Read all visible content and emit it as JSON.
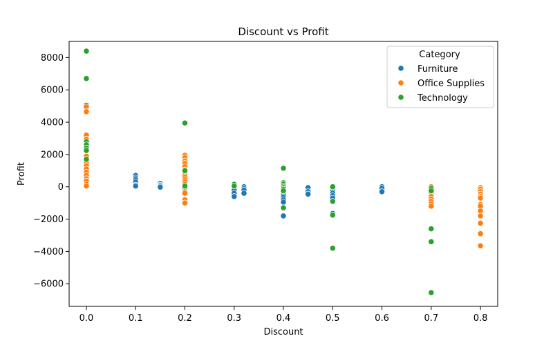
{
  "chart_data": {
    "type": "scatter",
    "title": "Discount vs Profit",
    "xlabel": "Discount",
    "ylabel": "Profit",
    "xlim": [
      -0.035,
      0.835
    ],
    "ylim": [
      -7400,
      9000
    ],
    "xticks": [
      0.0,
      0.1,
      0.2,
      0.3,
      0.4,
      0.5,
      0.6,
      0.7,
      0.8
    ],
    "xtick_labels": [
      "0.0",
      "0.1",
      "0.2",
      "0.3",
      "0.4",
      "0.5",
      "0.6",
      "0.7",
      "0.8"
    ],
    "yticks": [
      -6000,
      -4000,
      -2000,
      0,
      2000,
      4000,
      6000,
      8000
    ],
    "ytick_labels": [
      "−6000",
      "−4000",
      "−2000",
      "0",
      "2000",
      "4000",
      "6000",
      "8000"
    ],
    "grid": false,
    "legend": {
      "title": "Category",
      "placement": "top-right"
    },
    "series": [
      {
        "name": "Furniture",
        "color": "#1f77b4",
        "points": [
          [
            0.0,
            5050
          ],
          [
            0.0,
            1350
          ],
          [
            0.0,
            1050
          ],
          [
            0.0,
            800
          ],
          [
            0.0,
            600
          ],
          [
            0.0,
            400
          ],
          [
            0.0,
            200
          ],
          [
            0.0,
            100
          ],
          [
            0.1,
            700
          ],
          [
            0.1,
            550
          ],
          [
            0.1,
            450
          ],
          [
            0.1,
            300
          ],
          [
            0.1,
            100
          ],
          [
            0.1,
            50
          ],
          [
            0.15,
            200
          ],
          [
            0.15,
            100
          ],
          [
            0.15,
            50
          ],
          [
            0.15,
            -20
          ],
          [
            0.2,
            600
          ],
          [
            0.2,
            300
          ],
          [
            0.2,
            100
          ],
          [
            0.2,
            -100
          ],
          [
            0.3,
            150
          ],
          [
            0.3,
            0
          ],
          [
            0.3,
            -100
          ],
          [
            0.3,
            -200
          ],
          [
            0.3,
            -400
          ],
          [
            0.3,
            -600
          ],
          [
            0.32,
            0
          ],
          [
            0.32,
            -100
          ],
          [
            0.32,
            -200
          ],
          [
            0.32,
            -400
          ],
          [
            0.4,
            100
          ],
          [
            0.4,
            0
          ],
          [
            0.4,
            -100
          ],
          [
            0.4,
            -200
          ],
          [
            0.4,
            -350
          ],
          [
            0.4,
            -500
          ],
          [
            0.4,
            -650
          ],
          [
            0.4,
            -800
          ],
          [
            0.4,
            -950
          ],
          [
            0.4,
            -1800
          ],
          [
            0.45,
            -50
          ],
          [
            0.45,
            -300
          ],
          [
            0.45,
            -450
          ],
          [
            0.5,
            -100
          ],
          [
            0.5,
            -250
          ],
          [
            0.5,
            -400
          ],
          [
            0.5,
            -550
          ],
          [
            0.5,
            -700
          ],
          [
            0.5,
            -900
          ],
          [
            0.5,
            -1650
          ],
          [
            0.5,
            -1750
          ],
          [
            0.6,
            0
          ],
          [
            0.6,
            -100
          ],
          [
            0.6,
            -300
          ],
          [
            0.7,
            -200
          ],
          [
            0.7,
            -350
          ],
          [
            0.7,
            -500
          ]
        ]
      },
      {
        "name": "Office Supplies",
        "color": "#ff7f0e",
        "points": [
          [
            0.0,
            4950
          ],
          [
            0.0,
            4650
          ],
          [
            0.0,
            3200
          ],
          [
            0.0,
            2950
          ],
          [
            0.0,
            1900
          ],
          [
            0.0,
            1700
          ],
          [
            0.0,
            1500
          ],
          [
            0.0,
            1300
          ],
          [
            0.0,
            1100
          ],
          [
            0.0,
            900
          ],
          [
            0.0,
            700
          ],
          [
            0.0,
            500
          ],
          [
            0.0,
            350
          ],
          [
            0.0,
            150
          ],
          [
            0.0,
            50
          ],
          [
            0.2,
            1950
          ],
          [
            0.2,
            1800
          ],
          [
            0.2,
            1600
          ],
          [
            0.2,
            1450
          ],
          [
            0.2,
            1250
          ],
          [
            0.2,
            1050
          ],
          [
            0.2,
            900
          ],
          [
            0.2,
            750
          ],
          [
            0.2,
            600
          ],
          [
            0.2,
            450
          ],
          [
            0.2,
            300
          ],
          [
            0.2,
            150
          ],
          [
            0.2,
            -300
          ],
          [
            0.2,
            -400
          ],
          [
            0.2,
            -800
          ],
          [
            0.2,
            -1000
          ],
          [
            0.7,
            0
          ],
          [
            0.7,
            -200
          ],
          [
            0.7,
            -400
          ],
          [
            0.7,
            -600
          ],
          [
            0.7,
            -750
          ],
          [
            0.7,
            -900
          ],
          [
            0.7,
            -1050
          ],
          [
            0.7,
            -1200
          ],
          [
            0.8,
            -50
          ],
          [
            0.8,
            -150
          ],
          [
            0.8,
            -300
          ],
          [
            0.8,
            -450
          ],
          [
            0.8,
            -600
          ],
          [
            0.8,
            -700
          ],
          [
            0.8,
            -1100
          ],
          [
            0.8,
            -1200
          ],
          [
            0.8,
            -1500
          ],
          [
            0.8,
            -1800
          ],
          [
            0.8,
            -2250
          ],
          [
            0.8,
            -2900
          ],
          [
            0.8,
            -3650
          ]
        ]
      },
      {
        "name": "Technology",
        "color": "#2ca02c",
        "points": [
          [
            0.0,
            8400
          ],
          [
            0.0,
            6700
          ],
          [
            0.0,
            2800
          ],
          [
            0.0,
            2600
          ],
          [
            0.0,
            2400
          ],
          [
            0.0,
            2250
          ],
          [
            0.0,
            1700
          ],
          [
            0.2,
            3950
          ],
          [
            0.2,
            1000
          ],
          [
            0.2,
            50
          ],
          [
            0.3,
            150
          ],
          [
            0.3,
            50
          ],
          [
            0.4,
            1150
          ],
          [
            0.4,
            250
          ],
          [
            0.4,
            150
          ],
          [
            0.4,
            50
          ],
          [
            0.4,
            -50
          ],
          [
            0.4,
            -150
          ],
          [
            0.4,
            -250
          ],
          [
            0.4,
            -1300
          ],
          [
            0.5,
            0
          ],
          [
            0.5,
            -900
          ],
          [
            0.5,
            -1750
          ],
          [
            0.5,
            -3800
          ],
          [
            0.7,
            -100
          ],
          [
            0.7,
            -250
          ],
          [
            0.7,
            -2600
          ],
          [
            0.7,
            -3400
          ],
          [
            0.7,
            -6550
          ]
        ]
      }
    ]
  }
}
